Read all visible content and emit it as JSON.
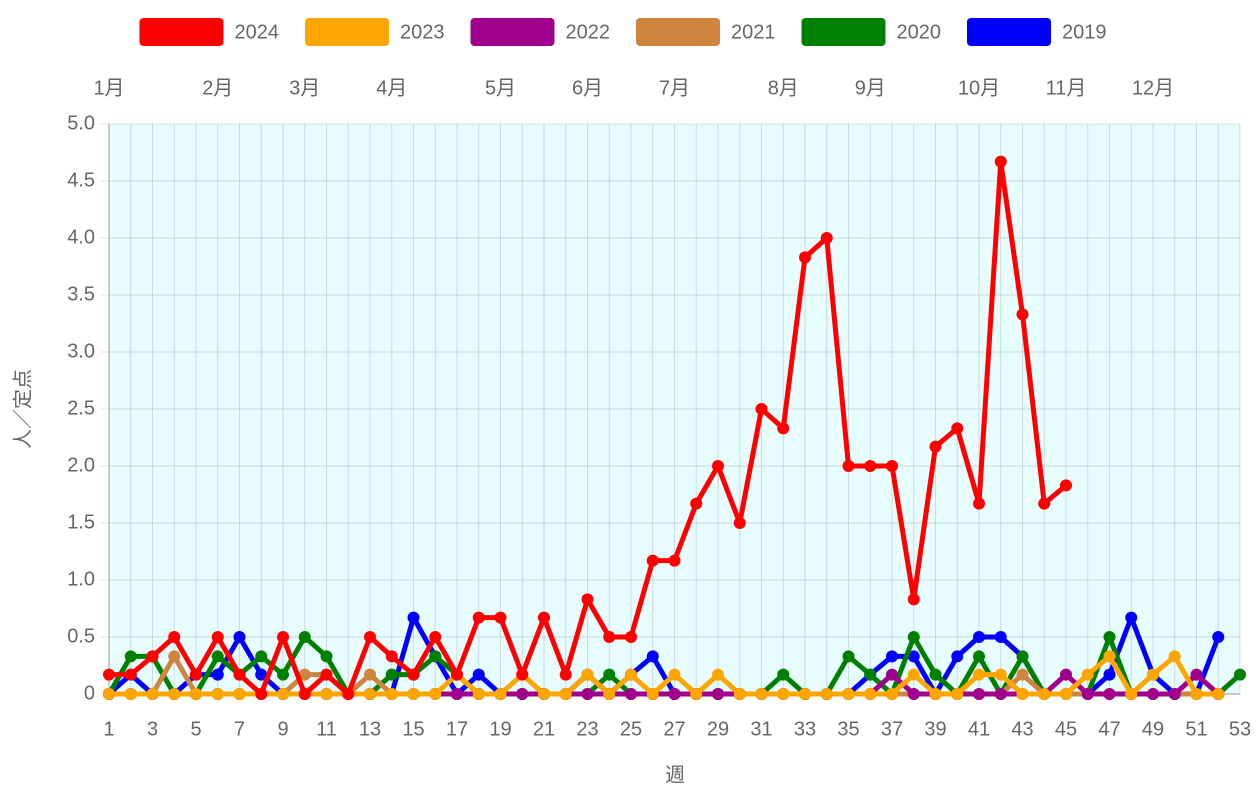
{
  "chart_data": {
    "type": "line",
    "x_label": "週",
    "y_label": "人／定点",
    "x": [
      1,
      2,
      3,
      4,
      5,
      6,
      7,
      8,
      9,
      10,
      11,
      12,
      13,
      14,
      15,
      16,
      17,
      18,
      19,
      20,
      21,
      22,
      23,
      24,
      25,
      26,
      27,
      28,
      29,
      30,
      31,
      32,
      33,
      34,
      35,
      36,
      37,
      38,
      39,
      40,
      41,
      42,
      43,
      44,
      45,
      46,
      47,
      48,
      49,
      50,
      51,
      52,
      53
    ],
    "xlim": [
      1,
      53
    ],
    "xticks": [
      1,
      3,
      5,
      7,
      9,
      11,
      13,
      15,
      17,
      19,
      21,
      23,
      25,
      27,
      29,
      31,
      33,
      35,
      37,
      39,
      41,
      43,
      45,
      47,
      49,
      51,
      53
    ],
    "x2ticks": [
      {
        "value": 1,
        "label": "1月"
      },
      {
        "value": 6,
        "label": "2月"
      },
      {
        "value": 10,
        "label": "3月"
      },
      {
        "value": 14,
        "label": "4月"
      },
      {
        "value": 19,
        "label": "5月"
      },
      {
        "value": 23,
        "label": "6月"
      },
      {
        "value": 27,
        "label": "7月"
      },
      {
        "value": 32,
        "label": "8月"
      },
      {
        "value": 36,
        "label": "9月"
      },
      {
        "value": 41,
        "label": "10月"
      },
      {
        "value": 45,
        "label": "11月"
      },
      {
        "value": 49,
        "label": "12月"
      }
    ],
    "ylim": [
      0,
      5
    ],
    "yticks": [
      0,
      0.5,
      {
        "value": 1,
        "label": "1.0"
      },
      1.5,
      {
        "value": 2,
        "label": "2.0"
      },
      2.5,
      {
        "value": 3,
        "label": "3.0"
      },
      3.5,
      {
        "value": 4,
        "label": "4.0"
      },
      4.5,
      {
        "value": 5,
        "label": "5.0"
      }
    ],
    "grid": true,
    "legend": "top",
    "series": [
      {
        "name": "2024",
        "color": "#ff0000",
        "values": [
          0.17,
          0.17,
          0.33,
          0.5,
          0.17,
          0.5,
          0.17,
          0,
          0.5,
          0,
          0.17,
          0,
          0.5,
          0.33,
          0.17,
          0.5,
          0.17,
          0.67,
          0.67,
          0.17,
          0.67,
          0.17,
          0.83,
          0.5,
          0.5,
          1.17,
          1.17,
          1.67,
          2,
          1.5,
          2.5,
          2.33,
          3.83,
          4,
          2,
          2,
          2,
          0.83,
          2.17,
          2.33,
          1.67,
          4.67,
          3.33,
          1.67,
          1.83,
          null,
          null,
          null,
          null,
          null,
          null,
          null,
          null
        ]
      },
      {
        "name": "2023",
        "color": "#ffa500",
        "values": [
          0,
          0,
          0,
          0,
          0,
          0,
          0,
          0,
          0,
          0,
          0,
          0,
          0,
          0,
          0,
          0,
          0.17,
          0,
          0,
          0.17,
          0,
          0,
          0.17,
          0,
          0.17,
          0,
          0.17,
          0,
          0.17,
          0,
          0,
          0,
          0,
          0,
          0,
          0,
          0,
          0.17,
          0,
          0,
          0.17,
          0.17,
          0,
          0,
          0,
          0.17,
          0.33,
          0,
          0.17,
          0.33,
          0,
          0,
          null
        ]
      },
      {
        "name": "2022",
        "color": "#a0008c",
        "values": [
          0,
          0,
          0,
          0,
          0,
          0,
          0,
          0,
          0,
          0,
          0,
          0,
          0,
          0,
          0,
          0,
          0,
          0,
          0,
          0,
          0,
          0,
          0,
          0,
          0,
          0,
          0,
          0,
          0,
          0,
          0,
          0,
          0,
          0,
          0,
          0,
          0.17,
          0,
          0,
          0,
          0,
          0,
          0,
          0,
          0.17,
          0,
          0,
          0,
          0,
          0,
          0.17,
          0,
          null
        ]
      },
      {
        "name": "2021",
        "color": "#cd853f",
        "values": [
          0,
          0,
          0,
          0.33,
          0,
          0,
          0,
          0,
          0,
          0.17,
          0.17,
          0,
          0.17,
          0,
          0,
          0,
          0,
          0,
          0,
          0,
          0,
          0,
          0,
          0,
          0,
          0,
          0,
          0,
          0,
          0,
          0,
          0,
          0,
          0,
          0,
          0,
          0,
          0,
          0,
          0,
          0,
          0,
          0.17,
          0,
          0,
          0,
          0,
          0,
          0,
          0,
          0,
          0,
          null
        ]
      },
      {
        "name": "2020",
        "color": "#008000",
        "values": [
          0,
          0.33,
          0.33,
          0,
          0,
          0.33,
          0.17,
          0.33,
          0.17,
          0.5,
          0.33,
          0,
          0,
          0.17,
          0.17,
          0.33,
          0.17,
          0,
          0,
          0,
          0,
          0,
          0,
          0.17,
          0,
          0,
          0,
          0,
          0,
          0,
          0,
          0.17,
          0,
          0,
          0.33,
          0.17,
          0,
          0.5,
          0.17,
          0,
          0.33,
          0,
          0.33,
          0,
          0,
          0,
          0.5,
          0,
          0,
          0,
          0,
          0,
          0.17
        ]
      },
      {
        "name": "2019",
        "color": "#0000ff",
        "values": [
          0,
          0.17,
          0,
          0,
          0.17,
          0.17,
          0.5,
          0.17,
          0,
          0,
          0,
          0,
          0,
          0,
          0.67,
          0.33,
          0,
          0.17,
          0,
          0,
          0,
          0,
          0.17,
          0,
          0.17,
          0.33,
          0,
          0,
          0,
          0,
          0,
          0,
          0,
          0,
          0,
          0.17,
          0.33,
          0.33,
          0,
          0.33,
          0.5,
          0.5,
          0.33,
          0,
          0,
          0,
          0.17,
          0.67,
          0.17,
          0,
          0,
          0.5,
          null
        ]
      }
    ]
  }
}
